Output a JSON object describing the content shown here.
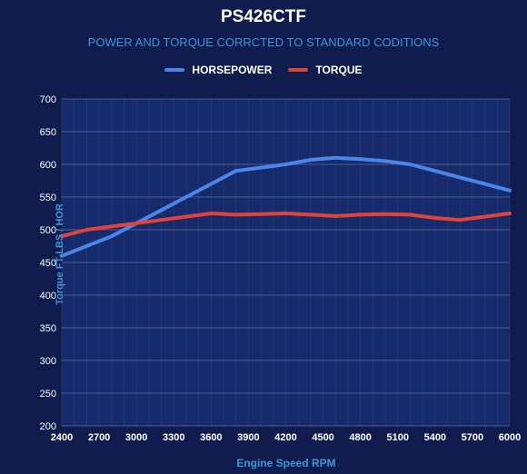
{
  "chart_data": {
    "type": "line",
    "title": "PS426CTF",
    "subtitle": "POWER AND TORQUE CORRCTED TO STANDARD CODITIONS",
    "xlabel": "Engine Speed RPM",
    "ylabel": "Torque FT-LBS / HOR",
    "x": [
      2400,
      2600,
      2800,
      3000,
      3200,
      3400,
      3600,
      3800,
      4000,
      4200,
      4400,
      4600,
      4800,
      5000,
      5200,
      5400,
      5600,
      5800,
      6000
    ],
    "x_ticks": [
      2400,
      2700,
      3000,
      3300,
      3600,
      3900,
      4200,
      4500,
      4800,
      5100,
      5400,
      5700,
      6000
    ],
    "y_ticks": [
      200,
      250,
      300,
      350,
      400,
      450,
      500,
      550,
      600,
      650,
      700
    ],
    "xlim": [
      2400,
      6000
    ],
    "ylim": [
      200,
      700
    ],
    "grid": true,
    "legend_position": "top",
    "series": [
      {
        "name": "HORSEPOWER",
        "color": "#4a86e8",
        "values": [
          460,
          475,
          490,
          510,
          530,
          550,
          570,
          590,
          595,
          600,
          607,
          610,
          608,
          605,
          600,
          590,
          580,
          570,
          560
        ]
      },
      {
        "name": "TORQUE",
        "color": "#e0433a",
        "values": [
          490,
          500,
          505,
          510,
          515,
          520,
          525,
          523,
          524,
          525,
          523,
          521,
          523,
          524,
          523,
          518,
          515,
          520,
          525
        ]
      }
    ]
  },
  "colors": {
    "background": "#0f1c4d",
    "plot_background": "#172a6b",
    "grid": "#3b4d88",
    "text_accent": "#3f95d8"
  }
}
